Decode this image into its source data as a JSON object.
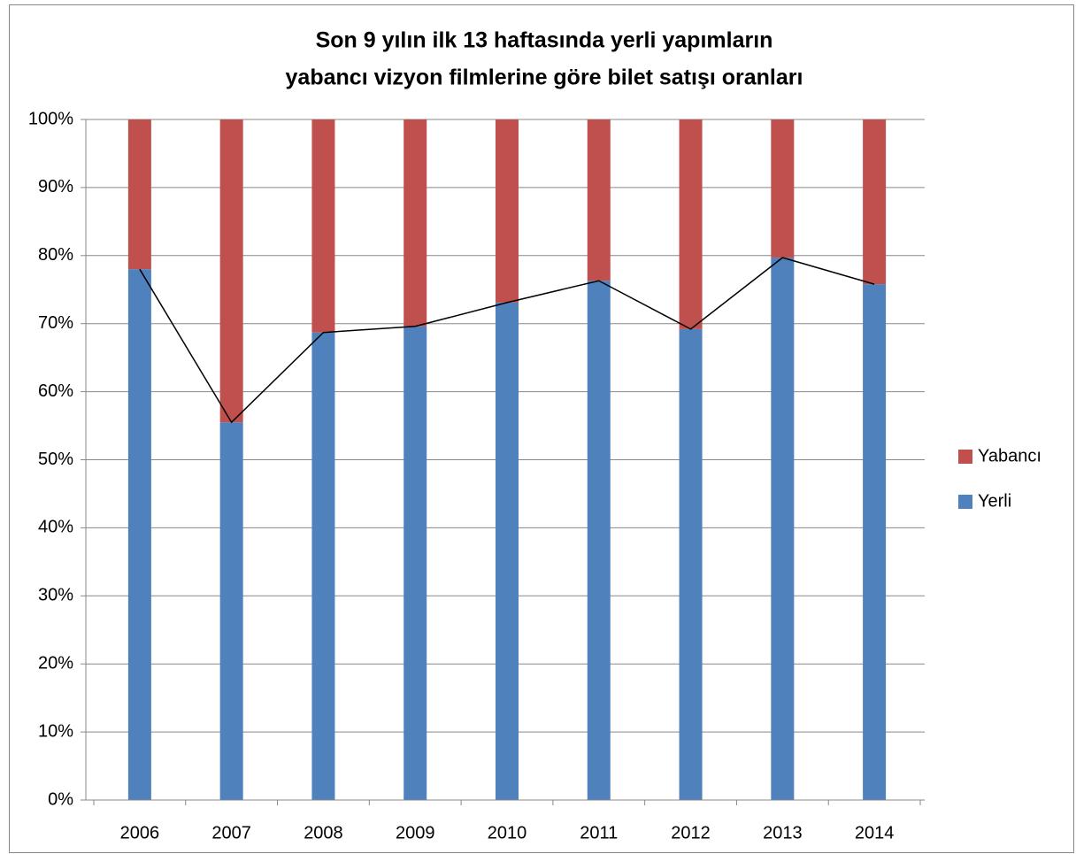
{
  "chart_data": {
    "type": "stacked_bar",
    "title": [
      "Son 9 yılın ilk 13 haftasında yerli yapımların",
      "yabancı vizyon filmlerine göre bilet satışı oranları"
    ],
    "categories": [
      "2006",
      "2007",
      "2008",
      "2009",
      "2010",
      "2011",
      "2012",
      "2013",
      "2014"
    ],
    "series": [
      {
        "name": "Yerli",
        "color": "#4f81bd",
        "values": [
          78,
          55.5,
          68.7,
          69.6,
          73.1,
          76.3,
          69.2,
          79.7,
          75.8
        ]
      },
      {
        "name": "Yabancı",
        "color": "#c0504d",
        "values": [
          22,
          44.5,
          31.3,
          30.4,
          26.9,
          23.7,
          30.8,
          20.3,
          24.2
        ]
      }
    ],
    "line_color": "#000000",
    "ylim": [
      0,
      100
    ],
    "yticks": [
      {
        "value": 0,
        "label": "0%"
      },
      {
        "value": 10,
        "label": "10%"
      },
      {
        "value": 20,
        "label": "20%"
      },
      {
        "value": 30,
        "label": "30%"
      },
      {
        "value": 40,
        "label": "40%"
      },
      {
        "value": 50,
        "label": "50%"
      },
      {
        "value": 60,
        "label": "60%"
      },
      {
        "value": 70,
        "label": "70%"
      },
      {
        "value": 80,
        "label": "80%"
      },
      {
        "value": 90,
        "label": "90%"
      },
      {
        "value": 100,
        "label": "100%"
      }
    ],
    "grid": true,
    "legend": "right"
  }
}
